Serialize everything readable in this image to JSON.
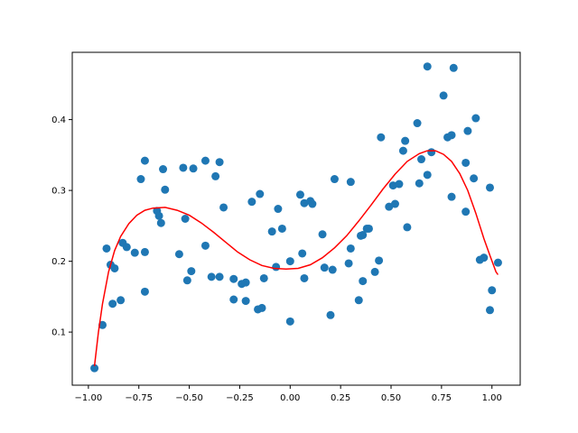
{
  "chart_data": {
    "type": "scatter",
    "title": "",
    "xlabel": "",
    "ylabel": "",
    "xlim": [
      -1.08,
      1.14
    ],
    "ylim": [
      0.025,
      0.495
    ],
    "grid": false,
    "x_ticks": [
      {
        "value": -1.0,
        "label": "−1.00"
      },
      {
        "value": -0.75,
        "label": "−0.75"
      },
      {
        "value": -0.5,
        "label": "−0.50"
      },
      {
        "value": -0.25,
        "label": "−0.25"
      },
      {
        "value": 0.0,
        "label": "0.00"
      },
      {
        "value": 0.25,
        "label": "0.25"
      },
      {
        "value": 0.5,
        "label": "0.50"
      },
      {
        "value": 0.75,
        "label": "0.75"
      },
      {
        "value": 1.0,
        "label": "1.00"
      }
    ],
    "y_ticks": [
      {
        "value": 0.1,
        "label": "0.1"
      },
      {
        "value": 0.2,
        "label": "0.2"
      },
      {
        "value": 0.3,
        "label": "0.3"
      },
      {
        "value": 0.4,
        "label": "0.4"
      }
    ],
    "series": [
      {
        "kind": "scatter",
        "color": "#1f77b4",
        "points": [
          [
            -0.97,
            0.049
          ],
          [
            -0.93,
            0.11
          ],
          [
            -0.91,
            0.218
          ],
          [
            -0.89,
            0.195
          ],
          [
            -0.88,
            0.14
          ],
          [
            -0.87,
            0.19
          ],
          [
            -0.84,
            0.145
          ],
          [
            -0.83,
            0.226
          ],
          [
            -0.81,
            0.22
          ],
          [
            -0.77,
            0.212
          ],
          [
            -0.74,
            0.316
          ],
          [
            -0.72,
            0.342
          ],
          [
            -0.72,
            0.213
          ],
          [
            -0.72,
            0.157
          ],
          [
            -0.66,
            0.271
          ],
          [
            -0.65,
            0.264
          ],
          [
            -0.64,
            0.254
          ],
          [
            -0.63,
            0.33
          ],
          [
            -0.62,
            0.301
          ],
          [
            -0.55,
            0.21
          ],
          [
            -0.53,
            0.332
          ],
          [
            -0.52,
            0.26
          ],
          [
            -0.51,
            0.173
          ],
          [
            -0.49,
            0.186
          ],
          [
            -0.48,
            0.331
          ],
          [
            -0.42,
            0.342
          ],
          [
            -0.42,
            0.222
          ],
          [
            -0.39,
            0.178
          ],
          [
            -0.37,
            0.32
          ],
          [
            -0.35,
            0.34
          ],
          [
            -0.35,
            0.178
          ],
          [
            -0.33,
            0.276
          ],
          [
            -0.28,
            0.175
          ],
          [
            -0.28,
            0.146
          ],
          [
            -0.24,
            0.168
          ],
          [
            -0.22,
            0.144
          ],
          [
            -0.22,
            0.17
          ],
          [
            -0.19,
            0.284
          ],
          [
            -0.16,
            0.132
          ],
          [
            -0.15,
            0.295
          ],
          [
            -0.14,
            0.134
          ],
          [
            -0.13,
            0.176
          ],
          [
            -0.09,
            0.242
          ],
          [
            -0.07,
            0.192
          ],
          [
            -0.06,
            0.274
          ],
          [
            -0.04,
            0.246
          ],
          [
            0.0,
            0.2
          ],
          [
            0.0,
            0.115
          ],
          [
            0.05,
            0.294
          ],
          [
            0.06,
            0.211
          ],
          [
            0.07,
            0.176
          ],
          [
            0.07,
            0.282
          ],
          [
            0.1,
            0.285
          ],
          [
            0.11,
            0.281
          ],
          [
            0.16,
            0.238
          ],
          [
            0.17,
            0.191
          ],
          [
            0.2,
            0.124
          ],
          [
            0.21,
            0.188
          ],
          [
            0.22,
            0.316
          ],
          [
            0.29,
            0.197
          ],
          [
            0.3,
            0.218
          ],
          [
            0.3,
            0.312
          ],
          [
            0.34,
            0.145
          ],
          [
            0.35,
            0.236
          ],
          [
            0.36,
            0.172
          ],
          [
            0.36,
            0.237
          ],
          [
            0.38,
            0.246
          ],
          [
            0.39,
            0.246
          ],
          [
            0.42,
            0.185
          ],
          [
            0.44,
            0.201
          ],
          [
            0.45,
            0.375
          ],
          [
            0.49,
            0.277
          ],
          [
            0.51,
            0.307
          ],
          [
            0.52,
            0.281
          ],
          [
            0.54,
            0.309
          ],
          [
            0.56,
            0.356
          ],
          [
            0.57,
            0.37
          ],
          [
            0.58,
            0.248
          ],
          [
            0.63,
            0.395
          ],
          [
            0.64,
            0.31
          ],
          [
            0.65,
            0.344
          ],
          [
            0.68,
            0.475
          ],
          [
            0.68,
            0.322
          ],
          [
            0.7,
            0.354
          ],
          [
            0.76,
            0.434
          ],
          [
            0.78,
            0.375
          ],
          [
            0.8,
            0.291
          ],
          [
            0.8,
            0.378
          ],
          [
            0.81,
            0.473
          ],
          [
            0.87,
            0.339
          ],
          [
            0.87,
            0.27
          ],
          [
            0.88,
            0.384
          ],
          [
            0.91,
            0.317
          ],
          [
            0.92,
            0.402
          ],
          [
            0.94,
            0.202
          ],
          [
            0.96,
            0.205
          ],
          [
            0.99,
            0.131
          ],
          [
            0.99,
            0.304
          ],
          [
            1.0,
            0.159
          ],
          [
            1.03,
            0.198
          ]
        ]
      },
      {
        "kind": "line",
        "color": "#ff0000",
        "points": [
          [
            -0.97,
            0.052
          ],
          [
            -0.95,
            0.1
          ],
          [
            -0.93,
            0.14
          ],
          [
            -0.9,
            0.185
          ],
          [
            -0.87,
            0.215
          ],
          [
            -0.84,
            0.235
          ],
          [
            -0.8,
            0.253
          ],
          [
            -0.76,
            0.265
          ],
          [
            -0.72,
            0.272
          ],
          [
            -0.68,
            0.275
          ],
          [
            -0.62,
            0.276
          ],
          [
            -0.56,
            0.272
          ],
          [
            -0.5,
            0.265
          ],
          [
            -0.44,
            0.254
          ],
          [
            -0.38,
            0.241
          ],
          [
            -0.32,
            0.227
          ],
          [
            -0.26,
            0.213
          ],
          [
            -0.2,
            0.202
          ],
          [
            -0.14,
            0.194
          ],
          [
            -0.08,
            0.19
          ],
          [
            -0.02,
            0.189
          ],
          [
            0.04,
            0.19
          ],
          [
            0.1,
            0.195
          ],
          [
            0.16,
            0.205
          ],
          [
            0.22,
            0.219
          ],
          [
            0.28,
            0.236
          ],
          [
            0.34,
            0.257
          ],
          [
            0.4,
            0.279
          ],
          [
            0.46,
            0.302
          ],
          [
            0.52,
            0.323
          ],
          [
            0.58,
            0.341
          ],
          [
            0.64,
            0.352
          ],
          [
            0.68,
            0.356
          ],
          [
            0.72,
            0.356
          ],
          [
            0.76,
            0.351
          ],
          [
            0.8,
            0.341
          ],
          [
            0.84,
            0.324
          ],
          [
            0.88,
            0.3
          ],
          [
            0.92,
            0.268
          ],
          [
            0.96,
            0.232
          ],
          [
            0.99,
            0.208
          ],
          [
            1.02,
            0.185
          ],
          [
            1.03,
            0.181
          ]
        ]
      }
    ]
  }
}
